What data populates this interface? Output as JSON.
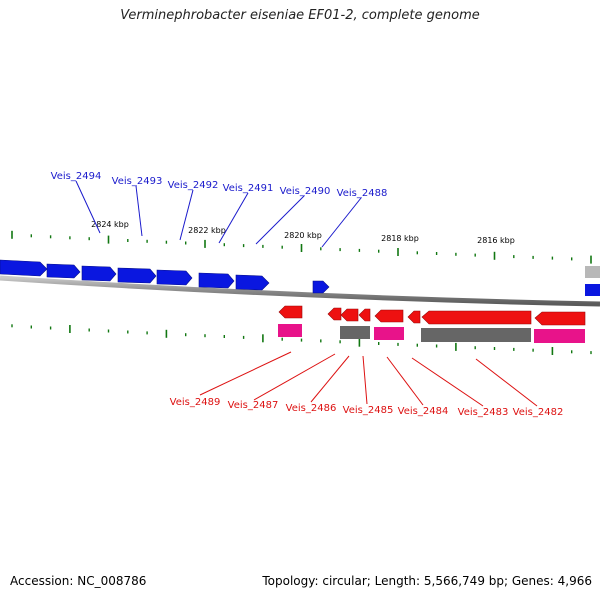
{
  "title": "Verminephrobacter eiseniae EF01-2, complete genome",
  "accession": "Accession: NC_008786",
  "topology": "Topology: circular; Length: 5,566,749 bp; Genes: 4,966",
  "colors": {
    "forward_gene": "#0a17e0",
    "reverse_gene": "#ee1111",
    "pink_feature": "#e8138a",
    "gray_feature": "#666666",
    "silver_feature": "#b8b8b8",
    "forward_label": "#1a1acc",
    "reverse_label": "#dd1111",
    "tick": "#117711",
    "backbone": "#8a8a8a"
  },
  "scale_labels": [
    "2824 kbp",
    "2822 kbp",
    "2820 kbp",
    "2818 kbp",
    "2816 kbp"
  ],
  "forward_gene_labels": [
    "Veis_2494",
    "Veis_2493",
    "Veis_2492",
    "Veis_2491",
    "Veis_2490",
    "Veis_2488"
  ],
  "reverse_gene_labels": [
    "Veis_2489",
    "Veis_2487",
    "Veis_2486",
    "Veis_2485",
    "Veis_2484",
    "Veis_2483",
    "Veis_2482"
  ]
}
